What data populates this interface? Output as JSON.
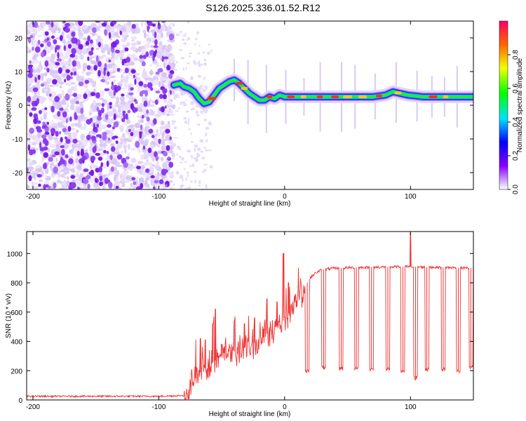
{
  "title": "S126.2025.336.01.52.R12",
  "colors": {
    "snr_line": "#ee3333",
    "axis": "#000000",
    "background": "#ffffff"
  },
  "chart_data": [
    {
      "type": "heatmap",
      "name": "spectrogram",
      "xlabel": "Height of straight line (km)",
      "ylabel": "Frequency (Hz)",
      "xlim": [
        -205,
        150
      ],
      "ylim": [
        -25,
        25
      ],
      "x_ticks": [
        -200,
        -100,
        0,
        100
      ],
      "y_ticks": [
        -20,
        -10,
        0,
        10,
        20
      ],
      "x_tick_labels": [
        "-200",
        "-100",
        "0",
        "100"
      ],
      "y_tick_labels": [
        "-20",
        "-10",
        "0",
        "10",
        "20"
      ],
      "noise_region_x": [
        -205,
        -88
      ],
      "ridge": {
        "x": [
          -88,
          -83,
          -80,
          -76,
          -72,
          -68,
          -64,
          -60,
          -56,
          -52,
          -48,
          -44,
          -40,
          -36,
          -32,
          -28,
          -24,
          -20,
          -16,
          -12,
          -8,
          -4,
          0,
          10,
          20,
          30,
          40,
          50,
          60,
          70,
          80,
          86,
          92,
          98,
          110,
          120,
          130,
          140,
          150
        ],
        "y": [
          6,
          6.5,
          5.5,
          5,
          4,
          2,
          0.5,
          1,
          3,
          5,
          6,
          7,
          7.5,
          6.5,
          5,
          3.5,
          2.5,
          1.5,
          1.5,
          2.5,
          2,
          3,
          2.5,
          2.5,
          2.5,
          2.5,
          2.5,
          2.5,
          2.5,
          2.5,
          3,
          4,
          3.5,
          3,
          2.5,
          2.5,
          2.5,
          2.5,
          2.5
        ]
      },
      "colorbar": {
        "label": "Normalized spectral amplitude",
        "range": [
          0,
          1
        ],
        "ticks": [
          0.0,
          0.2,
          0.4,
          0.6,
          0.8
        ],
        "tick_labels": [
          "0.0",
          "0.2",
          "0.4",
          "0.6",
          "0.8"
        ]
      }
    },
    {
      "type": "line",
      "name": "snr",
      "xlabel": "Height of straight line (km)",
      "ylabel": "SNR (10 * v/v)",
      "xlim": [
        -205,
        150
      ],
      "ylim": [
        0,
        1150
      ],
      "x_ticks": [
        -200,
        -100,
        0,
        100
      ],
      "y_ticks": [
        0,
        200,
        400,
        600,
        800,
        1000
      ],
      "x_tick_labels": [
        "-200",
        "-100",
        "0",
        "100"
      ],
      "y_tick_labels": [
        "0",
        "200",
        "400",
        "600",
        "800",
        "1000"
      ],
      "baseline": {
        "x": [
          -205,
          -150,
          -100,
          -80,
          -72,
          -65,
          -60,
          -50,
          -40,
          -30,
          -20,
          -10,
          0,
          5,
          10,
          15,
          20,
          25,
          30,
          40,
          60,
          100,
          150
        ],
        "y": [
          25,
          25,
          25,
          30,
          160,
          200,
          240,
          300,
          330,
          360,
          410,
          480,
          550,
          620,
          700,
          760,
          830,
          870,
          890,
          900,
          905,
          910,
          900
        ]
      },
      "spikes": [
        {
          "x": -67,
          "y": 420
        },
        {
          "x": -63,
          "y": 410
        },
        {
          "x": -57,
          "y": 520
        },
        {
          "x": -55,
          "y": 620
        },
        {
          "x": -50,
          "y": 380
        },
        {
          "x": -40,
          "y": 540
        },
        {
          "x": -32,
          "y": 520
        },
        {
          "x": -24,
          "y": 560
        },
        {
          "x": -14,
          "y": 690
        },
        {
          "x": -6,
          "y": 670
        },
        {
          "x": -1,
          "y": 1000
        },
        {
          "x": 3,
          "y": 800
        },
        {
          "x": 100,
          "y": 1140
        }
      ],
      "dips": [
        {
          "x": 18,
          "y": 200
        },
        {
          "x": 31,
          "y": 220
        },
        {
          "x": 45,
          "y": 215
        },
        {
          "x": 57,
          "y": 220
        },
        {
          "x": 69,
          "y": 210
        },
        {
          "x": 82,
          "y": 210
        },
        {
          "x": 94,
          "y": 200
        },
        {
          "x": 104,
          "y": 150
        },
        {
          "x": 113,
          "y": 210
        },
        {
          "x": 126,
          "y": 210
        },
        {
          "x": 138,
          "y": 200
        },
        {
          "x": 148,
          "y": 220
        }
      ],
      "dip_half_width": 1.6
    }
  ]
}
